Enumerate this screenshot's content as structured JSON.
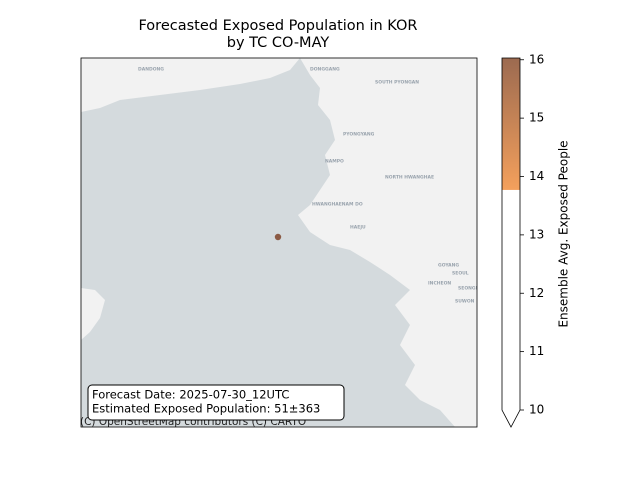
{
  "title": [
    "Forecasted Exposed Population in KOR",
    "by TC CO-MAY"
  ],
  "map_labels": [
    "DANDONG",
    "DONGGANG",
    "SOUTH PYONGAN",
    "PYONGYANG",
    "NAMPO",
    "NORTH HWANGHAE",
    "HWANGHAENAM DO",
    "HAEJU",
    "GOYANG",
    "SEOUL",
    "INCHEON",
    "SEONGNAM",
    "SUWON"
  ],
  "annotation": [
    "Forecast Date: 2025-07-30_12UTC",
    "Estimated Exposed Population: 51±363"
  ],
  "attribution": "(C) OpenStreetMap contributors (C) CARTO",
  "colorbar": {
    "label": "Ensemble Avg. Exposed People",
    "lim": [
      10,
      16.03
    ],
    "ticks": [
      10,
      11,
      12,
      13,
      14,
      15,
      16
    ],
    "under_color": "#ffffff",
    "stops": [
      {
        "value": 13.77,
        "color": "#f4a05c"
      },
      {
        "value": 16.03,
        "color": "#9c6a50"
      }
    ]
  }
}
